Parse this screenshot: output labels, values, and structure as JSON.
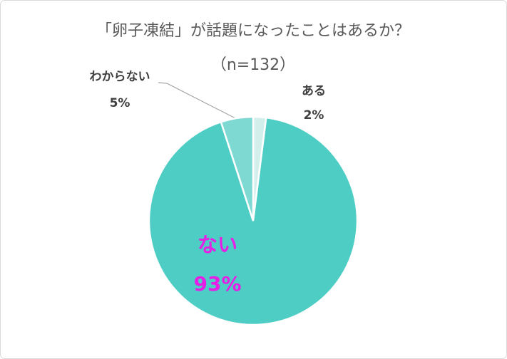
{
  "chart_data": {
    "type": "pie",
    "title": "「卵子凍結」が話題になったことはあるか？",
    "subtitle": "（n=132）",
    "categories": [
      "ある",
      "ない",
      "わからない"
    ],
    "values": [
      2,
      93,
      5
    ],
    "value_labels": [
      "2%",
      "93%",
      "5%"
    ],
    "colors": [
      "#d3efec",
      "#4ecdc4",
      "#7dd9d2"
    ]
  }
}
